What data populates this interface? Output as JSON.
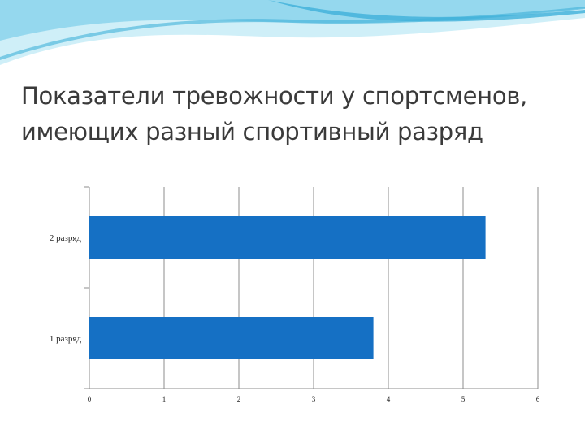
{
  "title": {
    "line1": "Показатели тревожности  у спортсменов,",
    "line2": "имеющих разный спортивный разряд"
  },
  "colors": {
    "bar": "#1570C4",
    "wave_light": "#BFE9F6",
    "wave_mid": "#7CCFEA",
    "wave_dark": "#3FB0D9",
    "grid": "#8C8C8C"
  },
  "chart_data": {
    "type": "bar",
    "orientation": "horizontal",
    "categories": [
      "2 разряд",
      "1 разряд"
    ],
    "values": [
      5.3,
      3.8
    ],
    "xlim": [
      0,
      6
    ],
    "x_ticks": [
      "0",
      "1",
      "2",
      "3",
      "4",
      "5",
      "6"
    ],
    "title": "",
    "xlabel": "",
    "ylabel": "",
    "grid": "vertical",
    "legend": "none"
  }
}
